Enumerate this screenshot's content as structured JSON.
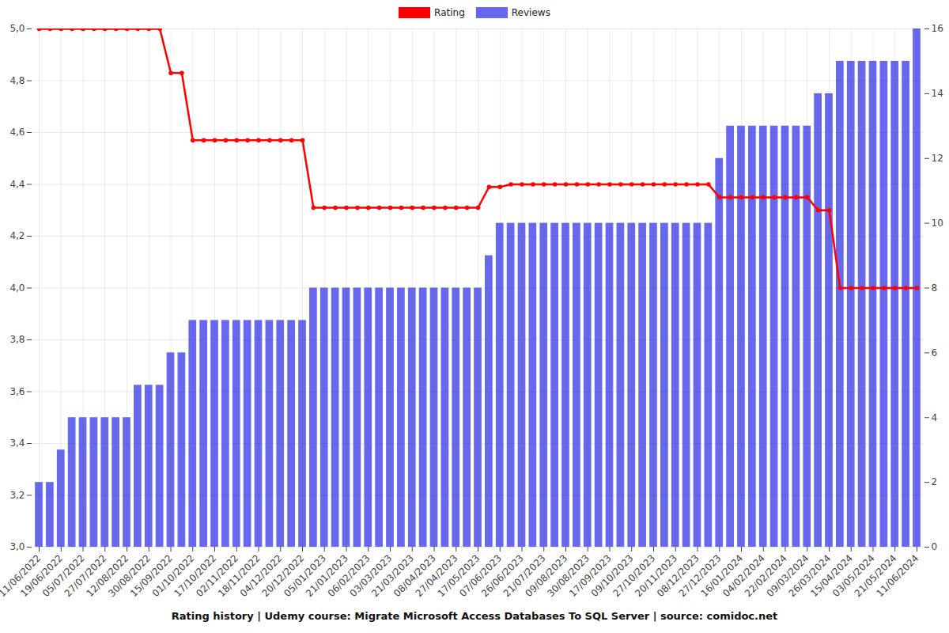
{
  "chart_data": {
    "type": "bar",
    "title": "Rating history | Udemy course: Migrate Microsoft Access Databases To SQL Server | source: comidoc.net",
    "categories": [
      "11/06/2022",
      null,
      "19/06/2022",
      null,
      "05/07/2022",
      null,
      "27/07/2022",
      null,
      "12/08/2022",
      null,
      "30/08/2022",
      null,
      "15/09/2022",
      null,
      "01/10/2022",
      null,
      "17/10/2022",
      null,
      "02/11/2022",
      null,
      "18/11/2022",
      null,
      "04/12/2022",
      null,
      "20/12/2022",
      null,
      "05/01/2023",
      null,
      "21/01/2023",
      null,
      "06/02/2023",
      null,
      "03/03/2023",
      null,
      "21/03/2023",
      null,
      "08/04/2023",
      null,
      "27/04/2023",
      null,
      "17/05/2023",
      null,
      "07/06/2023",
      null,
      "26/06/2023",
      null,
      "21/07/2023",
      null,
      "09/08/2023",
      null,
      "30/08/2023",
      null,
      "17/09/2023",
      null,
      "09/10/2023",
      null,
      "27/10/2023",
      null,
      "20/11/2023",
      null,
      "08/12/2023",
      null,
      "27/12/2023",
      null,
      "16/01/2024",
      null,
      "04/02/2024",
      null,
      "22/02/2024",
      null,
      "09/03/2024",
      null,
      "26/03/2024",
      null,
      "15/04/2024",
      null,
      "03/05/2024",
      null,
      "21/05/2024",
      null,
      "11/06/2024"
    ],
    "series": [
      {
        "name": "Rating",
        "type": "line",
        "marker": "circle",
        "color": "#ff0000",
        "values": [
          5.0,
          5.0,
          5.0,
          5.0,
          5.0,
          5.0,
          5.0,
          5.0,
          5.0,
          5.0,
          5.0,
          5.0,
          4.83,
          4.83,
          4.57,
          4.57,
          4.57,
          4.57,
          4.57,
          4.57,
          4.57,
          4.57,
          4.57,
          4.57,
          4.57,
          4.31,
          4.31,
          4.31,
          4.31,
          4.31,
          4.31,
          4.31,
          4.31,
          4.31,
          4.31,
          4.31,
          4.31,
          4.31,
          4.31,
          4.31,
          4.31,
          4.39,
          4.39,
          4.4,
          4.4,
          4.4,
          4.4,
          4.4,
          4.4,
          4.4,
          4.4,
          4.4,
          4.4,
          4.4,
          4.4,
          4.4,
          4.4,
          4.4,
          4.4,
          4.4,
          4.4,
          4.4,
          4.35,
          4.35,
          4.35,
          4.35,
          4.35,
          4.35,
          4.35,
          4.35,
          4.35,
          4.3,
          4.3,
          4.0,
          4.0,
          4.0,
          4.0,
          4.0,
          4.0,
          4.0,
          4.0
        ]
      },
      {
        "name": "Reviews",
        "type": "bar",
        "axis": "y2",
        "color": "#6868ee",
        "values": [
          2,
          2,
          3,
          4,
          4,
          4,
          4,
          4,
          4,
          5,
          5,
          5,
          6,
          6,
          7,
          7,
          7,
          7,
          7,
          7,
          7,
          7,
          7,
          7,
          7,
          8,
          8,
          8,
          8,
          8,
          8,
          8,
          8,
          8,
          8,
          8,
          8,
          8,
          8,
          8,
          8,
          9,
          10,
          10,
          10,
          10,
          10,
          10,
          10,
          10,
          10,
          10,
          10,
          10,
          10,
          10,
          10,
          10,
          10,
          10,
          10,
          10,
          12,
          13,
          13,
          13,
          13,
          13,
          13,
          13,
          13,
          14,
          14,
          15,
          15,
          15,
          15,
          15,
          15,
          15,
          16
        ]
      }
    ],
    "ylim": [
      3.0,
      5.0
    ],
    "yticks": [
      {
        "value": 3.0,
        "label": "3,0"
      },
      {
        "value": 3.2,
        "label": "3,2"
      },
      {
        "value": 3.4,
        "label": "3,4"
      },
      {
        "value": 3.6,
        "label": "3,6"
      },
      {
        "value": 3.8,
        "label": "3,8"
      },
      {
        "value": 4.0,
        "label": "4,0"
      },
      {
        "value": 4.2,
        "label": "4,2"
      },
      {
        "value": 4.4,
        "label": "4,4"
      },
      {
        "value": 4.6,
        "label": "4,6"
      },
      {
        "value": 4.8,
        "label": "4,8"
      },
      {
        "value": 5.0,
        "label": "5,0"
      }
    ],
    "y2lim": [
      0,
      16
    ],
    "y2ticks": [
      0,
      2,
      4,
      6,
      8,
      10,
      12,
      14,
      16
    ],
    "grid": true,
    "legend": "top"
  }
}
